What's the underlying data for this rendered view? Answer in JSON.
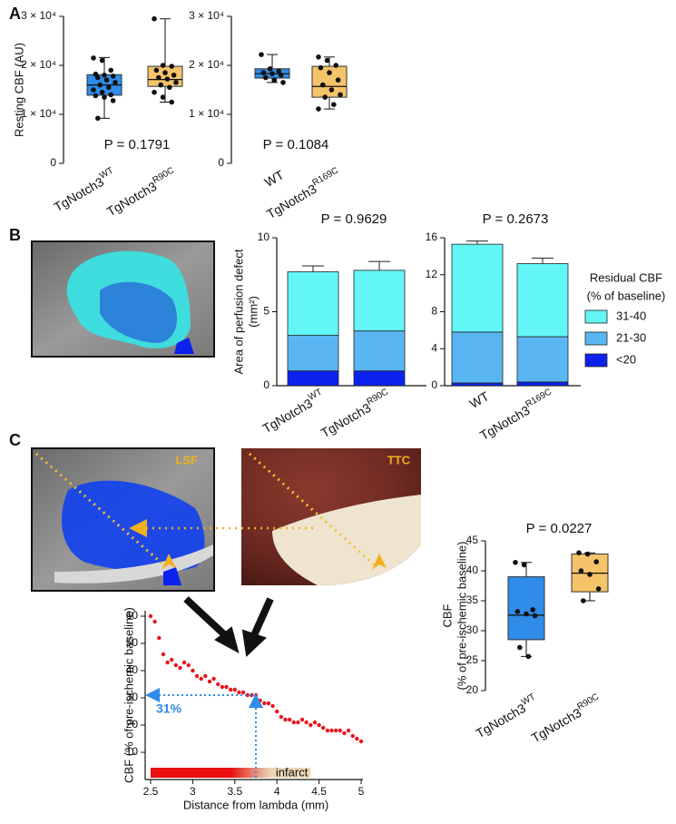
{
  "panel_labels": [
    "A",
    "B",
    "C"
  ],
  "image_labels": {
    "lsf": "LSF",
    "ttc": "TTC"
  },
  "chart_data": [
    {
      "type": "box",
      "ylabel": "Resting CBF (AU)",
      "annotation": "P = 0.1791",
      "categories": [
        "TgNotch3",
        "TgNotch3"
      ],
      "category_superscripts": [
        "WT",
        "R90C"
      ],
      "ylim": [
        0,
        30000
      ],
      "yticks": [
        0,
        {
          "value": 10000,
          "label": "1 × 10⁴"
        },
        {
          "value": 20000,
          "label": "2 × 10⁴"
        },
        {
          "value": 30000,
          "label": "3 × 10⁴"
        }
      ],
      "boxes": [
        {
          "color": "#2f8ce8",
          "min": 9200,
          "q1": 13900,
          "median": 16000,
          "q3": 18100,
          "max": 21600,
          "points": [
            21500,
            21000,
            19000,
            18200,
            18000,
            17800,
            17500,
            17000,
            16500,
            16000,
            15500,
            15000,
            14500,
            14000,
            13800,
            13500,
            12800,
            9200
          ]
        },
        {
          "color": "#f5c46a",
          "min": 12500,
          "q1": 15700,
          "median": 17100,
          "q3": 19800,
          "max": 29500,
          "points": [
            29500,
            20000,
            19800,
            19000,
            18500,
            18000,
            17500,
            17200,
            16500,
            16000,
            15500,
            14500,
            13500,
            12500
          ]
        }
      ]
    },
    {
      "type": "box",
      "annotation": "P = 0.1084",
      "categories": [
        "WT",
        "TgNotch3"
      ],
      "category_superscripts": [
        null,
        "R169C"
      ],
      "ylim": [
        0,
        30000
      ],
      "yticks": [
        0,
        {
          "value": 10000,
          "label": "1 × 10⁴"
        },
        {
          "value": 20000,
          "label": "2 × 10⁴"
        },
        {
          "value": 30000,
          "label": "3 × 10⁴"
        }
      ],
      "boxes": [
        {
          "color": "#2f8ce8",
          "min": 16500,
          "q1": 17400,
          "median": 18300,
          "q3": 19300,
          "max": 22200,
          "points": [
            22200,
            19300,
            18800,
            18500,
            18300,
            18000,
            17500,
            17000,
            16500
          ]
        },
        {
          "color": "#f5c46a",
          "min": 11100,
          "q1": 13500,
          "median": 15700,
          "q3": 19800,
          "max": 21700,
          "points": [
            21700,
            21000,
            20000,
            19500,
            18500,
            17000,
            16000,
            15000,
            14000,
            13500,
            12000,
            11100
          ]
        }
      ]
    },
    {
      "type": "stacked_bar",
      "ylabel": [
        "Area of perfusion defect",
        "(mm²)"
      ],
      "annotation": "P = 0.9629",
      "categories": [
        "TgNotch3",
        "TgNotch3"
      ],
      "category_superscripts": [
        "WT",
        "R90C"
      ],
      "ylim": [
        0,
        10
      ],
      "yticks": [
        0,
        5,
        10
      ],
      "series": [
        {
          "color": "#0b22ee",
          "values": [
            1.0,
            1.0
          ],
          "errors": [
            0.2,
            0.25
          ]
        },
        {
          "color": "#5ab6f2",
          "values": [
            2.4,
            2.7
          ],
          "errors": [
            0.35,
            0.45
          ]
        },
        {
          "color": "#62f6f6",
          "values": [
            4.3,
            4.1
          ],
          "errors": [
            0.4,
            0.6
          ]
        }
      ]
    },
    {
      "type": "stacked_bar",
      "annotation": "P = 0.2673",
      "categories": [
        "WT",
        "TgNotch3"
      ],
      "category_superscripts": [
        null,
        "R169C"
      ],
      "ylim": [
        0,
        16
      ],
      "yticks": [
        0,
        4,
        8,
        12,
        16
      ],
      "legend": "right",
      "legend_title": [
        "Residual CBF",
        "(% of baseline)"
      ],
      "series": [
        {
          "name": "<20",
          "color": "#0b22ee",
          "values": [
            0.3,
            0.4
          ],
          "errors": [
            0.1,
            0.2
          ]
        },
        {
          "name": "21-30",
          "color": "#5ab6f2",
          "values": [
            5.5,
            4.9
          ],
          "errors": [
            0.3,
            0.9
          ]
        },
        {
          "name": "31-40",
          "color": "#62f6f6",
          "values": [
            9.5,
            7.9
          ],
          "errors": [
            0.35,
            0.6
          ]
        }
      ]
    },
    {
      "type": "scatter",
      "xlabel": "Distance from lambda (mm)",
      "ylabel": "CBF (% of pre-ischemic baseline)",
      "color": "#e8141c",
      "xlim": [
        2.5,
        5
      ],
      "xticks": [
        2.5,
        3,
        3.5,
        4,
        4.5,
        5
      ],
      "ylim": [
        0,
        62
      ],
      "yticks": [
        10,
        20,
        30,
        40,
        50,
        60
      ],
      "x": [
        2.5,
        2.55,
        2.6,
        2.65,
        2.7,
        2.75,
        2.8,
        2.85,
        2.9,
        2.95,
        3.0,
        3.05,
        3.1,
        3.15,
        3.2,
        3.25,
        3.3,
        3.35,
        3.4,
        3.45,
        3.5,
        3.55,
        3.6,
        3.65,
        3.7,
        3.75,
        3.8,
        3.85,
        3.9,
        3.95,
        4.0,
        4.05,
        4.1,
        4.15,
        4.2,
        4.25,
        4.3,
        4.35,
        4.4,
        4.45,
        4.5,
        4.55,
        4.6,
        4.65,
        4.7,
        4.75,
        4.8,
        4.85,
        4.9,
        4.95,
        5.0
      ],
      "values": [
        60,
        58,
        52,
        46,
        43,
        44,
        42,
        41,
        43,
        42,
        40,
        38,
        37,
        38,
        36,
        37,
        35,
        34,
        34,
        33,
        33,
        32,
        32,
        31,
        31,
        31,
        29,
        28,
        28,
        27,
        25,
        23,
        22,
        22,
        21,
        21,
        22,
        21,
        20,
        21,
        20,
        19,
        18,
        18,
        18,
        18,
        17,
        18,
        16,
        15,
        14
      ],
      "marker": {
        "x": 3.75,
        "y": 31,
        "label": "31%"
      },
      "infarct_span": [
        2.5,
        4.4
      ],
      "infarct_label": "infarct"
    },
    {
      "type": "box",
      "ylabel": [
        "CBF",
        "(% of pre-ischemic baseline)"
      ],
      "annotation": "P = 0.0227",
      "categories": [
        "TgNotch3",
        "TgNotch3"
      ],
      "category_superscripts": [
        "WT",
        "R90C"
      ],
      "ylim": [
        20,
        45
      ],
      "yticks": [
        20,
        25,
        30,
        35,
        40,
        45
      ],
      "boxes": [
        {
          "color": "#2f8ce8",
          "min": 25.7,
          "q1": 28.5,
          "median": 32.6,
          "q3": 39,
          "max": 41.4,
          "points": [
            41.4,
            41,
            33.5,
            33.2,
            32.8,
            32.5,
            27.2,
            25.7
          ]
        },
        {
          "color": "#f5c46a",
          "min": 35,
          "q1": 36.5,
          "median": 39.6,
          "q3": 42.8,
          "max": 43,
          "points": [
            43,
            42.8,
            41.5,
            40,
            39.4,
            37,
            35
          ]
        }
      ]
    }
  ]
}
